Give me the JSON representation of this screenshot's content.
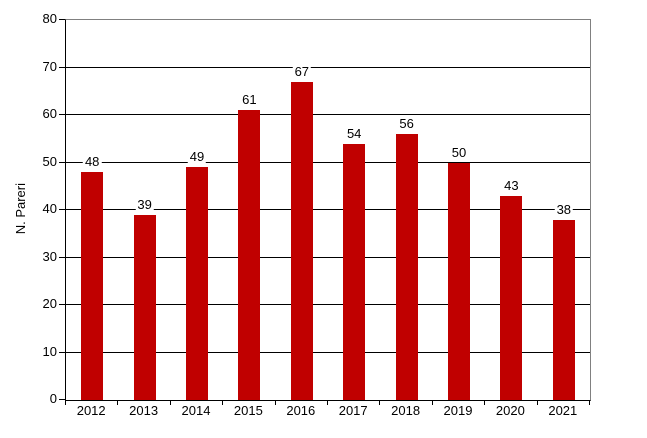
{
  "chart_data": {
    "type": "bar",
    "title": "",
    "categories": [
      "2012",
      "2013",
      "2014",
      "2015",
      "2016",
      "2017",
      "2018",
      "2019",
      "2020",
      "2021"
    ],
    "values": [
      48,
      39,
      49,
      61,
      67,
      54,
      56,
      50,
      43,
      38
    ],
    "xlabel": "",
    "ylabel": "N. Pareri",
    "ylim": [
      0,
      80
    ],
    "yticks": [
      0,
      10,
      20,
      30,
      40,
      50,
      60,
      70,
      80
    ],
    "grid": true,
    "legend_position": "none",
    "data_labels": true,
    "colors": {
      "bar": "#C00000",
      "gridline": "#000000",
      "plot_border": "#808080",
      "axis": "#000000",
      "background": "#FFFFFF",
      "text": "#000000"
    }
  }
}
